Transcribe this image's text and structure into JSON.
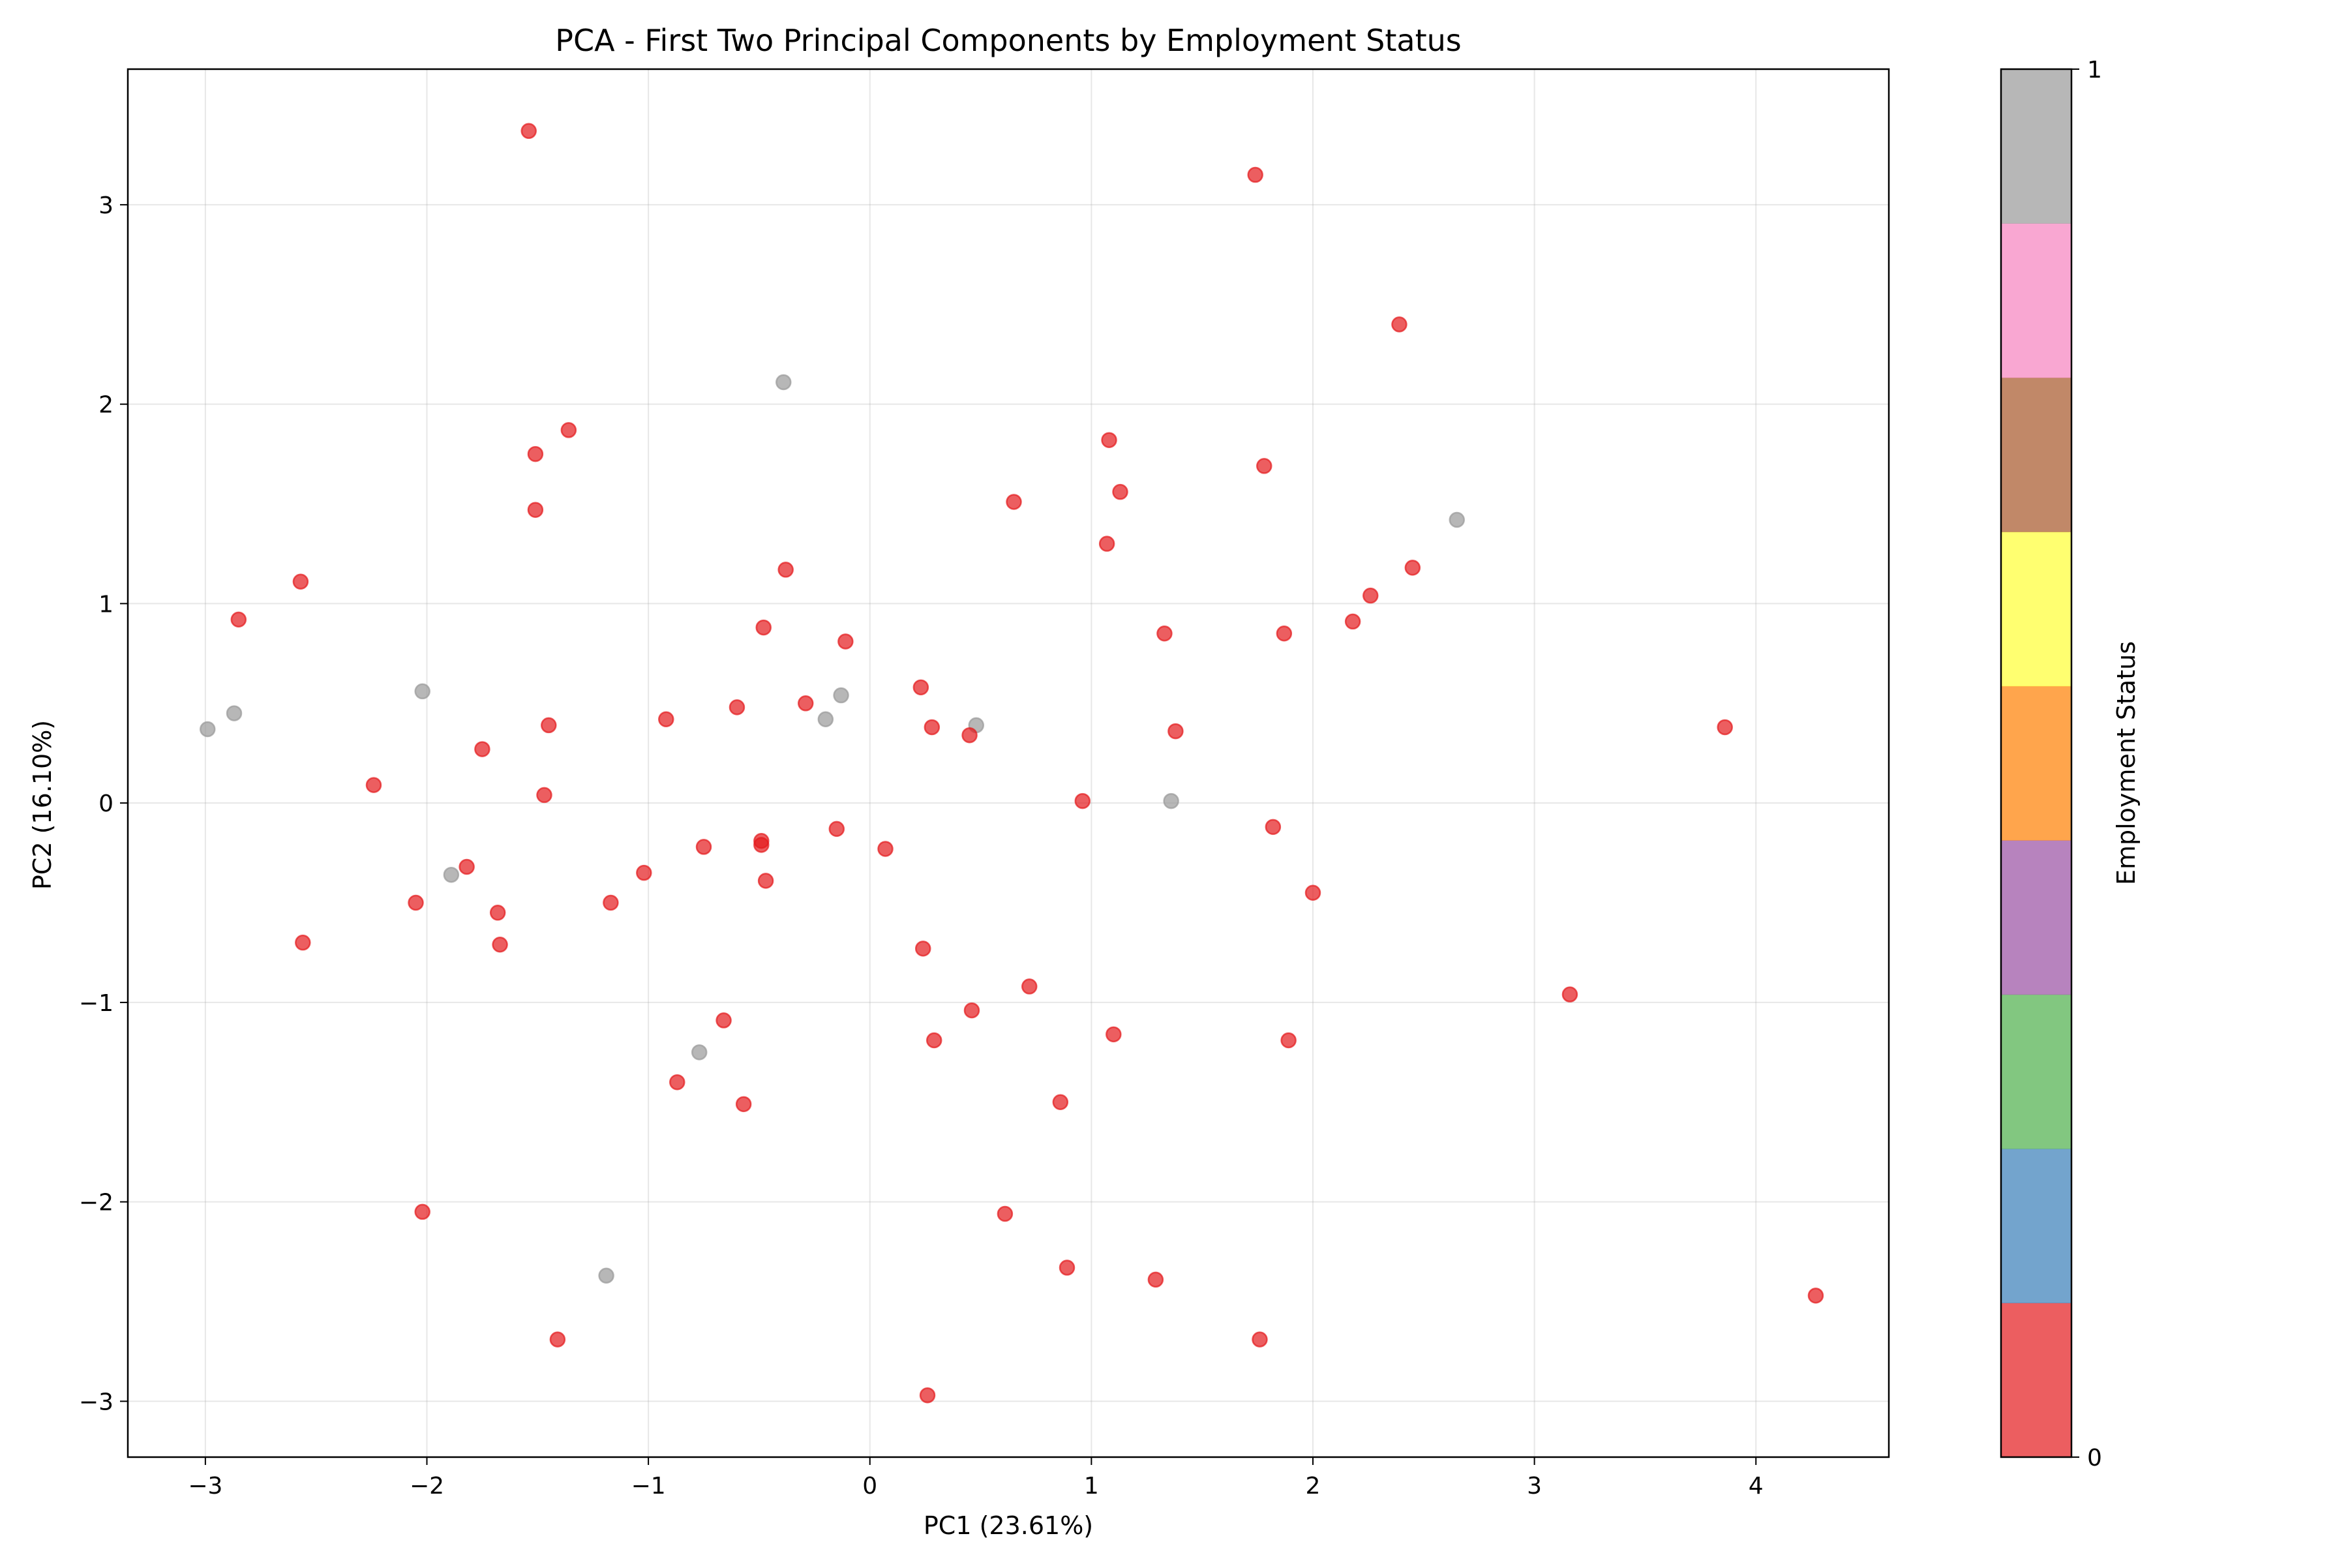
{
  "chart_data": {
    "type": "scatter",
    "title": "PCA - First Two Principal Components by Employment Status",
    "xlabel": "PC1 (23.61%)",
    "ylabel": "PC2 (16.10%)",
    "xlim": [
      -3.35,
      4.6
    ],
    "ylim": [
      -3.28,
      3.68
    ],
    "xticks": [
      -3,
      -2,
      -1,
      0,
      1,
      2,
      3,
      4
    ],
    "xtick_labels": [
      "−3",
      "−2",
      "−1",
      "0",
      "1",
      "2",
      "3",
      "4"
    ],
    "yticks": [
      -3,
      -2,
      -1,
      0,
      1,
      2,
      3
    ],
    "ytick_labels": [
      "−3",
      "−2",
      "−1",
      "0",
      "1",
      "2",
      "3"
    ],
    "grid": true,
    "marker_opacity": 0.7,
    "point_colors": {
      "0": "#e41a1c",
      "1": "#999999"
    },
    "colorbar": {
      "label": "Employment Status",
      "tick_values": [
        0,
        1
      ],
      "tick_labels": [
        "0",
        "1"
      ],
      "colors": [
        "#e41a1c",
        "#377eb8",
        "#4daf4a",
        "#984ea3",
        "#ff7f00",
        "#ffff33",
        "#a65628",
        "#f781bf",
        "#999999"
      ],
      "opacity": 0.7
    },
    "points": [
      {
        "x": -2.99,
        "y": 0.37,
        "status": 1
      },
      {
        "x": -2.87,
        "y": 0.45,
        "status": 1
      },
      {
        "x": -2.02,
        "y": 0.56,
        "status": 1
      },
      {
        "x": -1.89,
        "y": -0.36,
        "status": 1
      },
      {
        "x": -0.39,
        "y": 2.11,
        "status": 1
      },
      {
        "x": -0.2,
        "y": 0.42,
        "status": 1
      },
      {
        "x": -0.13,
        "y": 0.54,
        "status": 1
      },
      {
        "x": 0.48,
        "y": 0.39,
        "status": 1
      },
      {
        "x": 1.36,
        "y": 0.01,
        "status": 1
      },
      {
        "x": 2.65,
        "y": 1.42,
        "status": 1
      },
      {
        "x": -0.77,
        "y": -1.25,
        "status": 1
      },
      {
        "x": -1.19,
        "y": -2.37,
        "status": 1
      },
      {
        "x": -2.85,
        "y": 0.92,
        "status": 0
      },
      {
        "x": -2.57,
        "y": 1.11,
        "status": 0
      },
      {
        "x": -2.56,
        "y": -0.7,
        "status": 0
      },
      {
        "x": -2.24,
        "y": 0.09,
        "status": 0
      },
      {
        "x": -2.05,
        "y": -0.5,
        "status": 0
      },
      {
        "x": -2.02,
        "y": -2.05,
        "status": 0
      },
      {
        "x": -1.82,
        "y": -0.32,
        "status": 0
      },
      {
        "x": -1.75,
        "y": 0.27,
        "status": 0
      },
      {
        "x": -1.68,
        "y": -0.55,
        "status": 0
      },
      {
        "x": -1.67,
        "y": -0.71,
        "status": 0
      },
      {
        "x": -1.54,
        "y": 3.37,
        "status": 0
      },
      {
        "x": -1.51,
        "y": 1.75,
        "status": 0
      },
      {
        "x": -1.51,
        "y": 1.47,
        "status": 0
      },
      {
        "x": -1.47,
        "y": 0.04,
        "status": 0
      },
      {
        "x": -1.45,
        "y": 0.39,
        "status": 0
      },
      {
        "x": -1.41,
        "y": -2.69,
        "status": 0
      },
      {
        "x": -1.36,
        "y": 1.87,
        "status": 0
      },
      {
        "x": -1.17,
        "y": -0.5,
        "status": 0
      },
      {
        "x": -1.02,
        "y": -0.35,
        "status": 0
      },
      {
        "x": -0.92,
        "y": 0.42,
        "status": 0
      },
      {
        "x": -0.87,
        "y": -1.4,
        "status": 0
      },
      {
        "x": -0.75,
        "y": -0.22,
        "status": 0
      },
      {
        "x": -0.66,
        "y": -1.09,
        "status": 0
      },
      {
        "x": -0.6,
        "y": 0.48,
        "status": 0
      },
      {
        "x": -0.57,
        "y": -1.51,
        "status": 0
      },
      {
        "x": -0.49,
        "y": -0.19,
        "status": 0
      },
      {
        "x": -0.49,
        "y": -0.21,
        "status": 0
      },
      {
        "x": -0.48,
        "y": 0.88,
        "status": 0
      },
      {
        "x": -0.47,
        "y": -0.39,
        "status": 0
      },
      {
        "x": -0.38,
        "y": 1.17,
        "status": 0
      },
      {
        "x": -0.29,
        "y": 0.5,
        "status": 0
      },
      {
        "x": -0.15,
        "y": -0.13,
        "status": 0
      },
      {
        "x": -0.11,
        "y": 0.81,
        "status": 0
      },
      {
        "x": 0.07,
        "y": -0.23,
        "status": 0
      },
      {
        "x": 0.23,
        "y": 0.58,
        "status": 0
      },
      {
        "x": 0.24,
        "y": -0.73,
        "status": 0
      },
      {
        "x": 0.26,
        "y": -2.97,
        "status": 0
      },
      {
        "x": 0.28,
        "y": 0.38,
        "status": 0
      },
      {
        "x": 0.29,
        "y": -1.19,
        "status": 0
      },
      {
        "x": 0.45,
        "y": 0.34,
        "status": 0
      },
      {
        "x": 0.46,
        "y": -1.04,
        "status": 0
      },
      {
        "x": 0.61,
        "y": -2.06,
        "status": 0
      },
      {
        "x": 0.65,
        "y": 1.51,
        "status": 0
      },
      {
        "x": 0.72,
        "y": -0.92,
        "status": 0
      },
      {
        "x": 0.86,
        "y": -1.5,
        "status": 0
      },
      {
        "x": 0.89,
        "y": -2.33,
        "status": 0
      },
      {
        "x": 0.96,
        "y": 0.01,
        "status": 0
      },
      {
        "x": 1.07,
        "y": 1.3,
        "status": 0
      },
      {
        "x": 1.08,
        "y": 1.82,
        "status": 0
      },
      {
        "x": 1.1,
        "y": -1.16,
        "status": 0
      },
      {
        "x": 1.13,
        "y": 1.56,
        "status": 0
      },
      {
        "x": 1.29,
        "y": -2.39,
        "status": 0
      },
      {
        "x": 1.33,
        "y": 0.85,
        "status": 0
      },
      {
        "x": 1.38,
        "y": 0.36,
        "status": 0
      },
      {
        "x": 1.74,
        "y": 3.15,
        "status": 0
      },
      {
        "x": 1.76,
        "y": -2.69,
        "status": 0
      },
      {
        "x": 1.78,
        "y": 1.69,
        "status": 0
      },
      {
        "x": 1.82,
        "y": -0.12,
        "status": 0
      },
      {
        "x": 1.87,
        "y": 0.85,
        "status": 0
      },
      {
        "x": 1.89,
        "y": -1.19,
        "status": 0
      },
      {
        "x": 2.0,
        "y": -0.45,
        "status": 0
      },
      {
        "x": 2.18,
        "y": 0.91,
        "status": 0
      },
      {
        "x": 2.26,
        "y": 1.04,
        "status": 0
      },
      {
        "x": 2.39,
        "y": 2.4,
        "status": 0
      },
      {
        "x": 2.45,
        "y": 1.18,
        "status": 0
      },
      {
        "x": 3.16,
        "y": -0.96,
        "status": 0
      },
      {
        "x": 3.86,
        "y": 0.38,
        "status": 0
      },
      {
        "x": 4.27,
        "y": -2.47,
        "status": 0
      }
    ]
  }
}
